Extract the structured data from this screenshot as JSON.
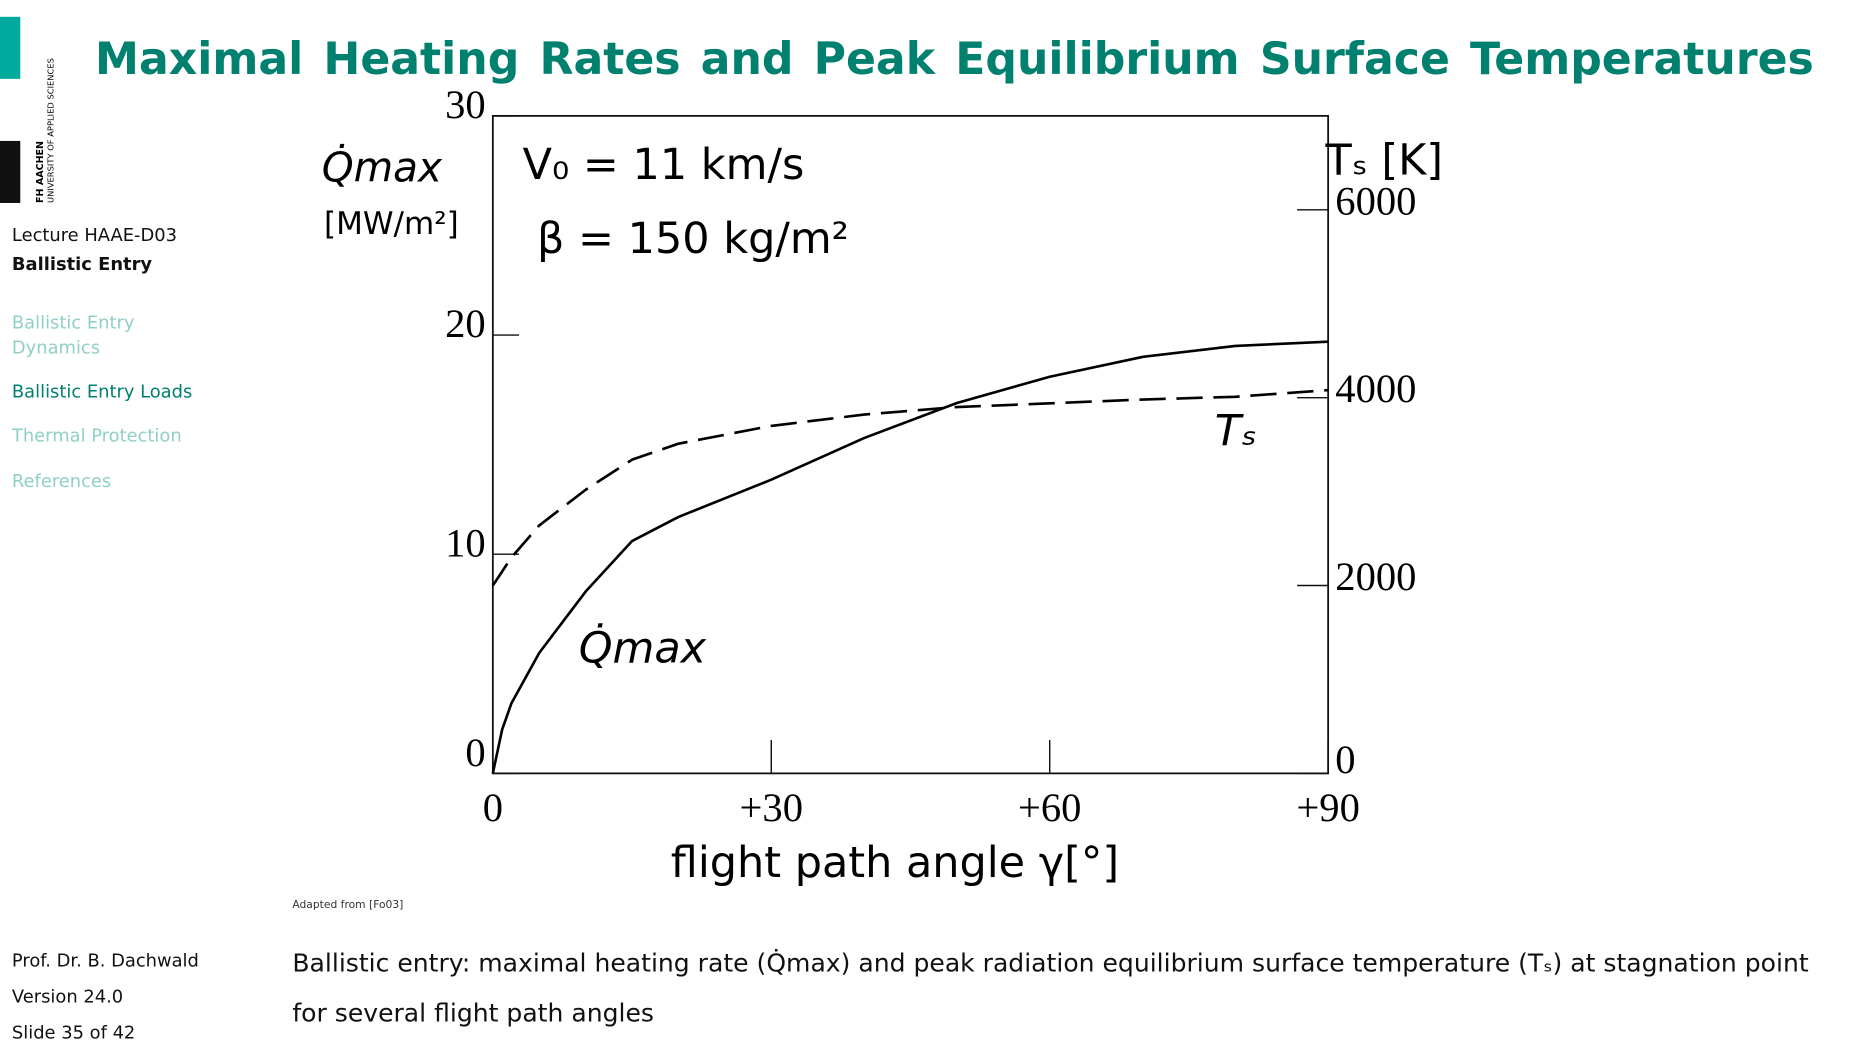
{
  "logo": {
    "name": "FH AACHEN",
    "subtitle": "UNIVERSITY OF APPLIED SCIENCES"
  },
  "sidebar": {
    "lecture": "Lecture HAAE-D03",
    "topic": "Ballistic Entry",
    "nav": [
      "Ballistic Entry Dynamics",
      "Ballistic Entry Loads",
      "Thermal Protection",
      "References"
    ],
    "active": 1,
    "author": "Prof. Dr. B. Dachwald",
    "version": "Version 24.0",
    "slide": "Slide 35 of 42"
  },
  "title": "Maximal Heating Rates and Peak Equilibrium Surface Temperatures",
  "source": "Adapted from [Fo03]",
  "caption": "Ballistic entry: maximal heating rate (Q̇max) and peak radiation equilibrium surface temperature (Tₛ) at stagnation point for several flight path angles",
  "chart_data": {
    "type": "line",
    "annotations": [
      "V₀ = 11 km/s",
      "β = 150 kg/m²"
    ],
    "xlabel": "flight path angle γ[°]",
    "ylabel": "Q̇max",
    "ylabel_unit": "[MW/m²]",
    "y2label": "Tₛ [K]",
    "x": [
      0,
      1,
      2,
      5,
      10,
      15,
      20,
      30,
      40,
      50,
      60,
      70,
      80,
      90
    ],
    "series": [
      {
        "name": "Q̇max",
        "color": "#000000",
        "linestyle": "solid",
        "values": [
          0,
          2.0,
          3.2,
          5.5,
          8.3,
          10.6,
          11.7,
          13.4,
          15.3,
          16.9,
          18.1,
          19.0,
          19.5,
          19.7
        ]
      },
      {
        "name": "Tₛ",
        "color": "#000000",
        "linestyle": "dashed",
        "axis": "y2",
        "values": [
          2000,
          2150,
          2300,
          2640,
          3020,
          3340,
          3510,
          3700,
          3820,
          3900,
          3940,
          3980,
          4010,
          4080
        ]
      }
    ],
    "xlim": [
      0,
      90
    ],
    "xticks": [
      0,
      {
        "value": 30,
        "label": "+30"
      },
      {
        "value": 60,
        "label": "+60"
      },
      {
        "value": 90,
        "label": "+90"
      }
    ],
    "ylim": [
      0,
      30
    ],
    "yticks": [
      0,
      10,
      20,
      30
    ],
    "y2lim": [
      0,
      7000
    ],
    "y2ticks": [
      0,
      2000,
      4000,
      6000
    ],
    "grid": false
  }
}
